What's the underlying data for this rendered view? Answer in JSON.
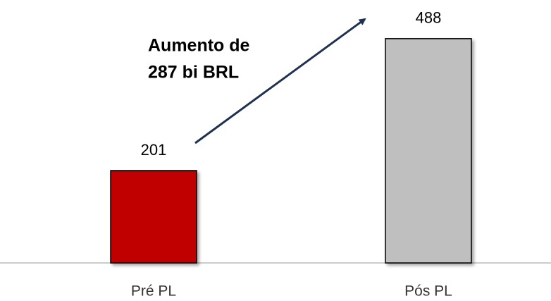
{
  "chart_data": {
    "type": "bar",
    "categories": [
      "Pré PL",
      "Pós PL"
    ],
    "values": [
      201,
      488
    ],
    "colors": [
      "#c00000",
      "#bfbfbf"
    ],
    "ylim": [
      0,
      500
    ],
    "annotation": [
      "Aumento de",
      "287 bi BRL"
    ]
  }
}
